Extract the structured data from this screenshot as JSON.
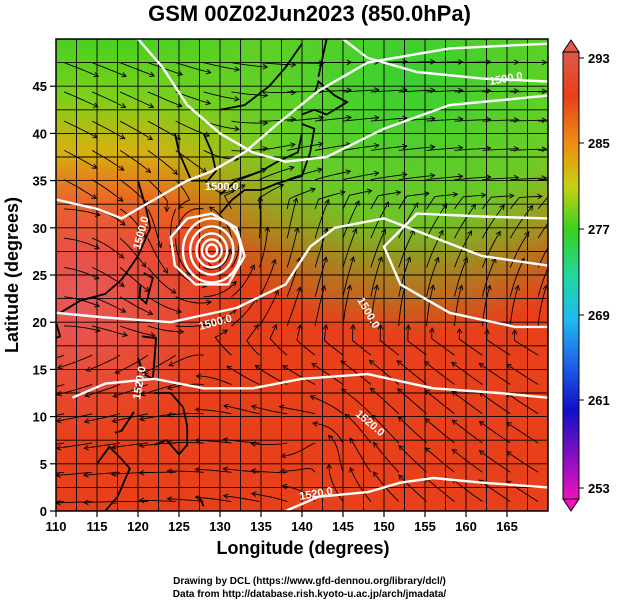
{
  "title": "GSM 00Z02Jun2023 (850.0hPa)",
  "axes": {
    "xlabel": "Longitude (degrees)",
    "ylabel": "Latitude  (degrees)",
    "x_ticks": [
      "110",
      "115",
      "120",
      "125",
      "130",
      "135",
      "140",
      "145",
      "150",
      "155",
      "160",
      "165"
    ],
    "y_ticks": [
      "0",
      "5",
      "10",
      "15",
      "20",
      "25",
      "30",
      "35",
      "40",
      "45"
    ]
  },
  "colorbar": {
    "labels": [
      "293",
      "285",
      "277",
      "269",
      "261",
      "253"
    ],
    "colors": {
      "t293": "#e0584a",
      "t289": "#e8401a",
      "t285": "#f08a10",
      "t281": "#c8d010",
      "t277": "#38d020",
      "t273": "#20d8a0",
      "t269": "#20b8f0",
      "t265": "#2060e8",
      "t261": "#1010c8",
      "t257": "#8010c0",
      "t253": "#f010c0"
    }
  },
  "contour_labels": {
    "c1": "1500.0",
    "c2": "1500.0",
    "c3": "1500.0",
    "c4": "1500.0",
    "c5": "1500.0",
    "c6": "1520.0",
    "c7": "1520.0",
    "c8": "1520.0"
  },
  "credits": {
    "line1": "Drawing by DCL (https://www.gfd-dennou.org/library/dcl/)",
    "line2": "Data from http://database.rish.kyoto-u.ac.jp/arch/jmadata/"
  }
}
